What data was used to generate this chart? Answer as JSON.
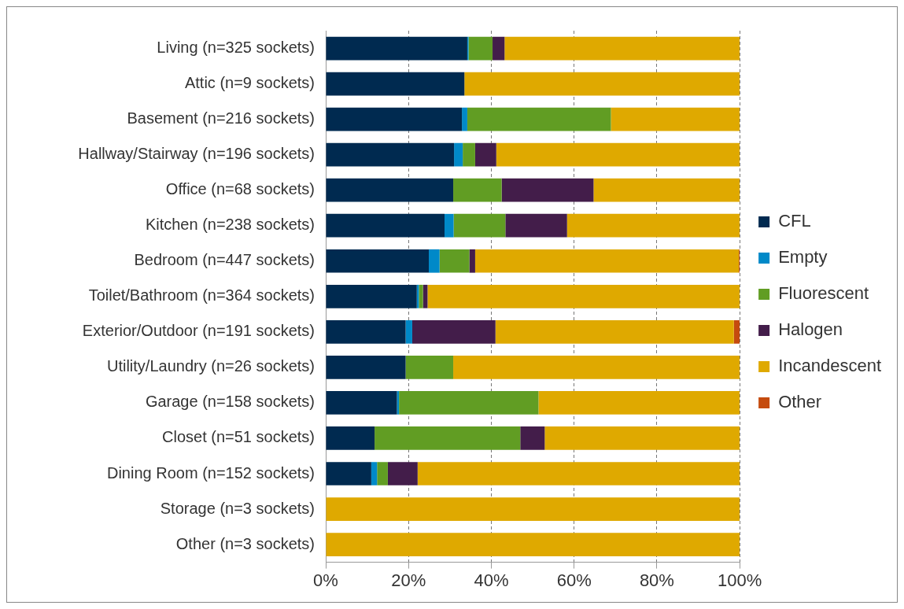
{
  "chart_data": {
    "type": "bar",
    "orientation": "horizontal",
    "stacked": true,
    "categories": [
      "Living (n=325 sockets)",
      "Attic (n=9 sockets)",
      "Basement (n=216 sockets)",
      "Hallway/Stairway (n=196 sockets)",
      "Office (n=68 sockets)",
      "Kitchen (n=238 sockets)",
      "Bedroom (n=447 sockets)",
      "Toilet/Bathroom (n=364 sockets)",
      "Exterior/Outdoor (n=191 sockets)",
      "Utility/Laundry (n=26 sockets)",
      "Garage (n=158 sockets)",
      "Closet (n=51 sockets)",
      "Dining Room (n=152 sockets)",
      "Storage (n=3 sockets)",
      "Other (n=3 sockets)"
    ],
    "series": [
      {
        "name": "CFL",
        "color": "#002a50",
        "values": [
          34.2,
          33.5,
          32.9,
          31.0,
          30.8,
          28.7,
          24.9,
          22.0,
          19.3,
          19.3,
          17.2,
          11.8,
          11.0,
          0,
          0
        ]
      },
      {
        "name": "Empty",
        "color": "#0089c8",
        "values": [
          0.3,
          0,
          1.3,
          2.1,
          0,
          2.2,
          2.6,
          0.5,
          1.6,
          0,
          0.5,
          0,
          1.4,
          0,
          0
        ]
      },
      {
        "name": "Fluorescent",
        "color": "#619d23",
        "values": [
          5.8,
          0,
          34.7,
          3.0,
          11.7,
          12.5,
          7.2,
          1.0,
          0,
          11.5,
          33.7,
          35.2,
          2.6,
          0,
          0
        ]
      },
      {
        "name": "Halogen",
        "color": "#431d4a",
        "values": [
          2.9,
          0,
          0,
          5.1,
          22.2,
          14.9,
          1.4,
          1.1,
          20.1,
          0,
          0,
          5.9,
          7.2,
          0,
          0
        ]
      },
      {
        "name": "Incandescent",
        "color": "#dfa900",
        "values": [
          56.8,
          66.5,
          31.1,
          58.8,
          35.3,
          41.7,
          63.7,
          75.4,
          57.6,
          69.2,
          48.6,
          47.1,
          77.8,
          100,
          100
        ]
      },
      {
        "name": "Other",
        "color": "#c54b0e",
        "values": [
          0,
          0,
          0,
          0,
          0,
          0,
          0.2,
          0,
          1.4,
          0,
          0,
          0,
          0,
          0,
          0
        ]
      }
    ],
    "xlim": [
      0,
      100
    ],
    "xticks": [
      {
        "value": 0,
        "label": "0%"
      },
      {
        "value": 20,
        "label": "20%"
      },
      {
        "value": 40,
        "label": "40%"
      },
      {
        "value": 60,
        "label": "60%"
      },
      {
        "value": 80,
        "label": "80%"
      },
      {
        "value": 100,
        "label": "100%"
      }
    ],
    "grid": "x",
    "legend": "right"
  }
}
